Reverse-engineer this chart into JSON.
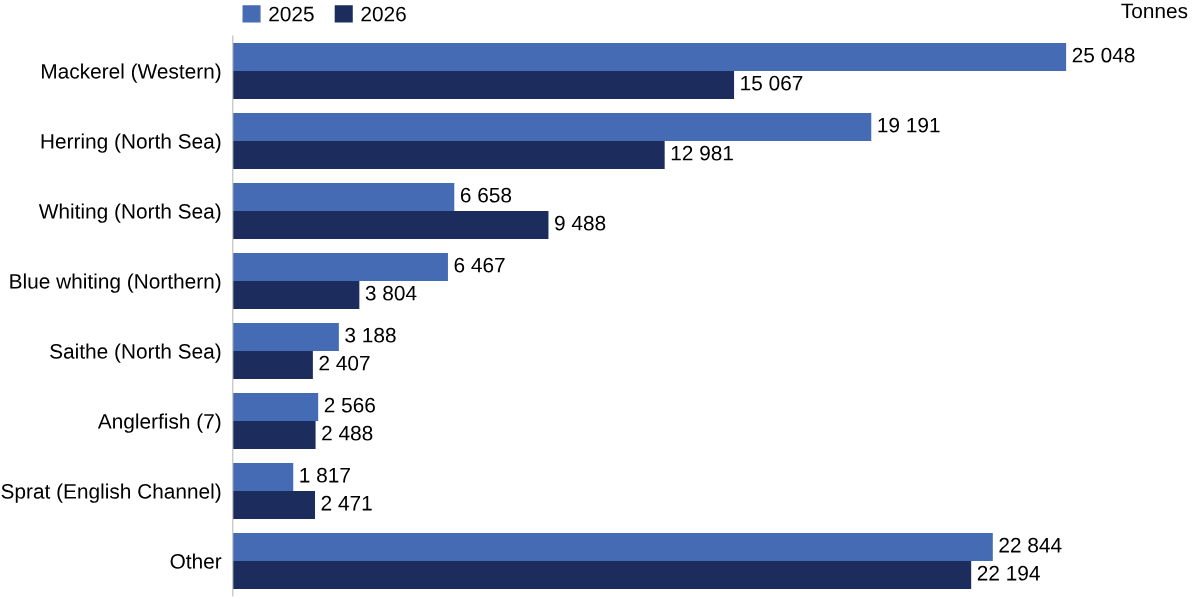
{
  "chart_data": {
    "type": "bar",
    "orientation": "horizontal",
    "categories": [
      "Mackerel (Western)",
      "Herring (North Sea)",
      "Whiting (North Sea)",
      "Blue whiting (Northern)",
      "Saithe (North Sea)",
      "Anglerfish (7)",
      "Sprat (English Channel)",
      "Other"
    ],
    "series": [
      {
        "name": "2025",
        "color": "#456bb4",
        "values": [
          25048,
          19191,
          6658,
          6467,
          3188,
          2566,
          1817,
          22844
        ],
        "value_labels": [
          "25 048",
          "19 191",
          "6 658",
          "6 467",
          "3 188",
          "2 566",
          "1 817",
          "22 844"
        ]
      },
      {
        "name": "2026",
        "color": "#1c2c5c",
        "values": [
          15067,
          12981,
          9488,
          3804,
          2407,
          2488,
          2471,
          22194
        ],
        "value_labels": [
          "15 067",
          "12 981",
          "9 488",
          "3 804",
          "2 407",
          "2 488",
          "2 471",
          "22 194"
        ]
      }
    ],
    "annotations": [
      "Tonnes"
    ],
    "legend": "top left",
    "grid": false
  }
}
